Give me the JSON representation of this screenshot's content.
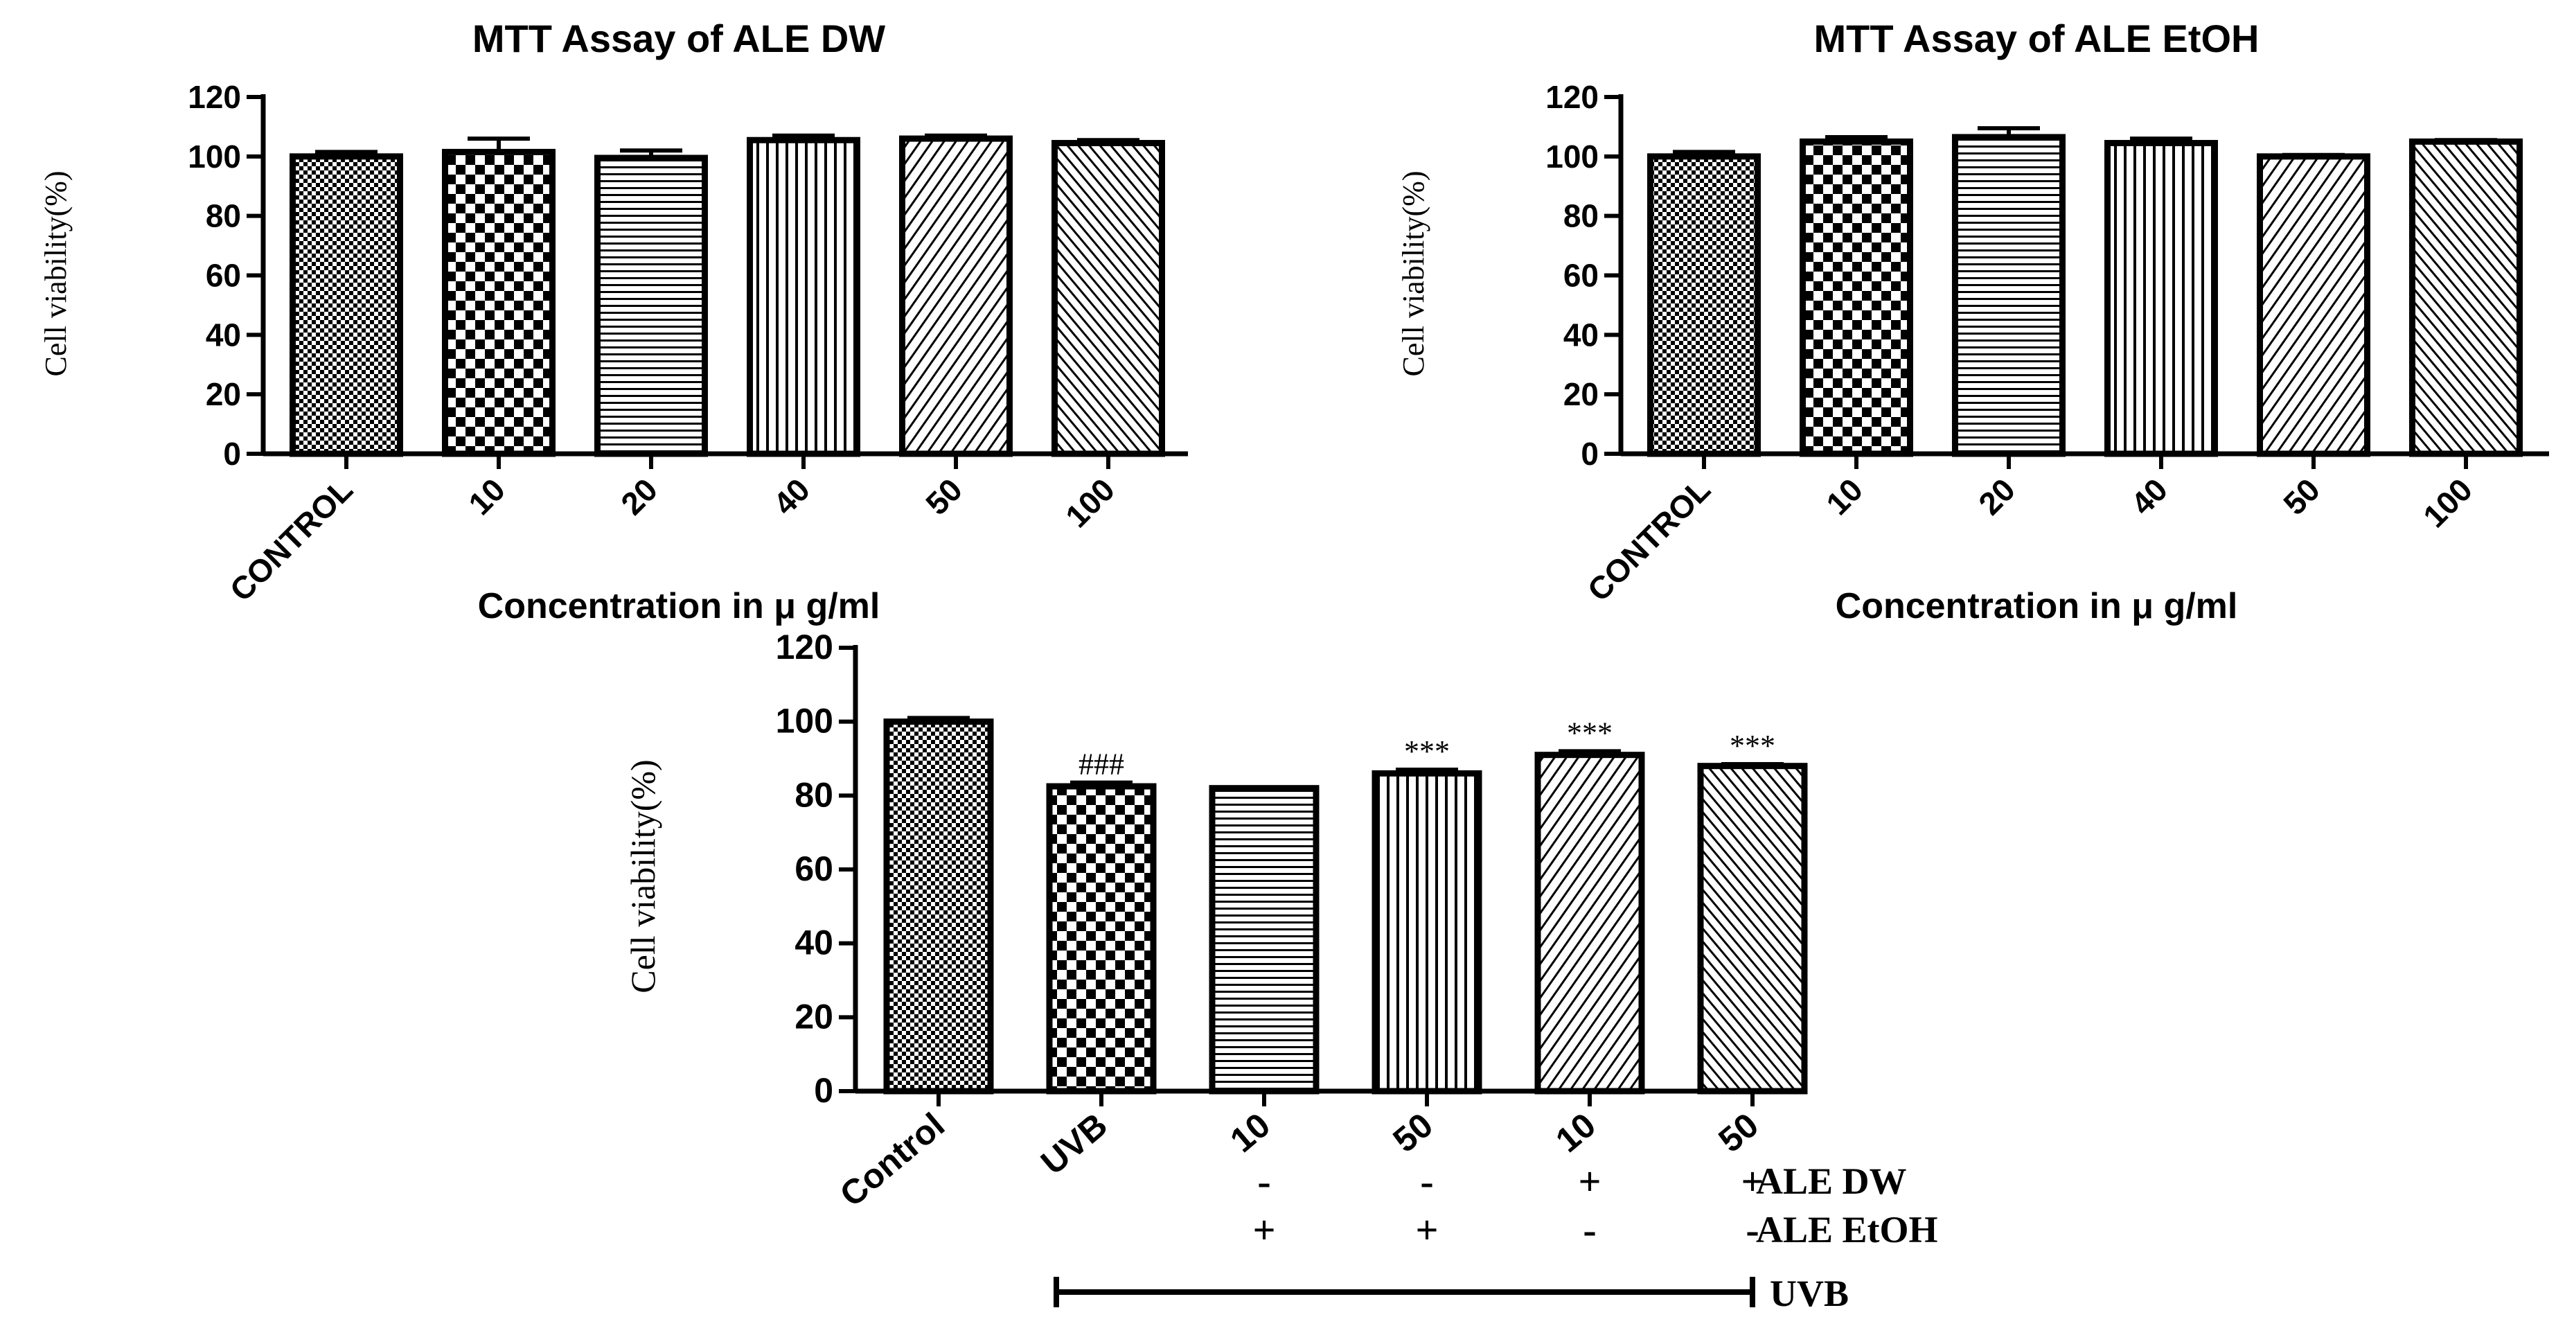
{
  "chart_data": [
    {
      "type": "bar",
      "title": "MTT Assay of  ALE DW",
      "ylabel": "Cell viability(%)",
      "xlabel": "Concentration in  μ g/ml",
      "ylim": [
        0,
        120
      ],
      "yticks": [
        "0",
        "20",
        "40",
        "60",
        "80",
        "100",
        "120"
      ],
      "categories": [
        "CONTROL",
        "10",
        "20",
        "40",
        "50",
        "100"
      ],
      "values": [
        100,
        101.5,
        99.5,
        105.5,
        106,
        104.5
      ],
      "errors": [
        1.5,
        4.5,
        2.5,
        1.5,
        1,
        1
      ]
    },
    {
      "type": "bar",
      "title": "MTT Assay of  ALE EtOH",
      "ylabel": "Cell viability(%)",
      "xlabel": "Concentration in  μ g/ml",
      "ylim": [
        0,
        120
      ],
      "yticks": [
        "0",
        "20",
        "40",
        "60",
        "80",
        "100",
        "120"
      ],
      "categories": [
        "CONTROL",
        "10",
        "20",
        "40",
        "50",
        "100"
      ],
      "values": [
        100,
        105,
        106.5,
        104.5,
        100,
        105
      ],
      "errors": [
        1.5,
        1.5,
        3,
        1.5,
        0.5,
        0.5
      ]
    },
    {
      "type": "bar",
      "title": "",
      "ylabel": "Cell viability(%)",
      "xlabel": "",
      "ylim": [
        0,
        120
      ],
      "yticks": [
        "0",
        "20",
        "40",
        "60",
        "80",
        "100",
        "120"
      ],
      "categories": [
        "Control",
        "UVB",
        "10",
        "50",
        "10",
        "50"
      ],
      "values": [
        100,
        82.5,
        82,
        86,
        91,
        88
      ],
      "errors": [
        1,
        1,
        0,
        1,
        1,
        0.5
      ],
      "annotations": [
        "",
        "###",
        "",
        "***",
        "***",
        "***"
      ],
      "treatment_rows": [
        {
          "label": "ALE DW",
          "signs": [
            "",
            "",
            "-",
            "-",
            "+",
            "+"
          ]
        },
        {
          "label": "ALE EtOH",
          "signs": [
            "",
            "",
            "+",
            "+",
            "-",
            "-"
          ]
        }
      ],
      "bracket_label": "UVB"
    }
  ]
}
